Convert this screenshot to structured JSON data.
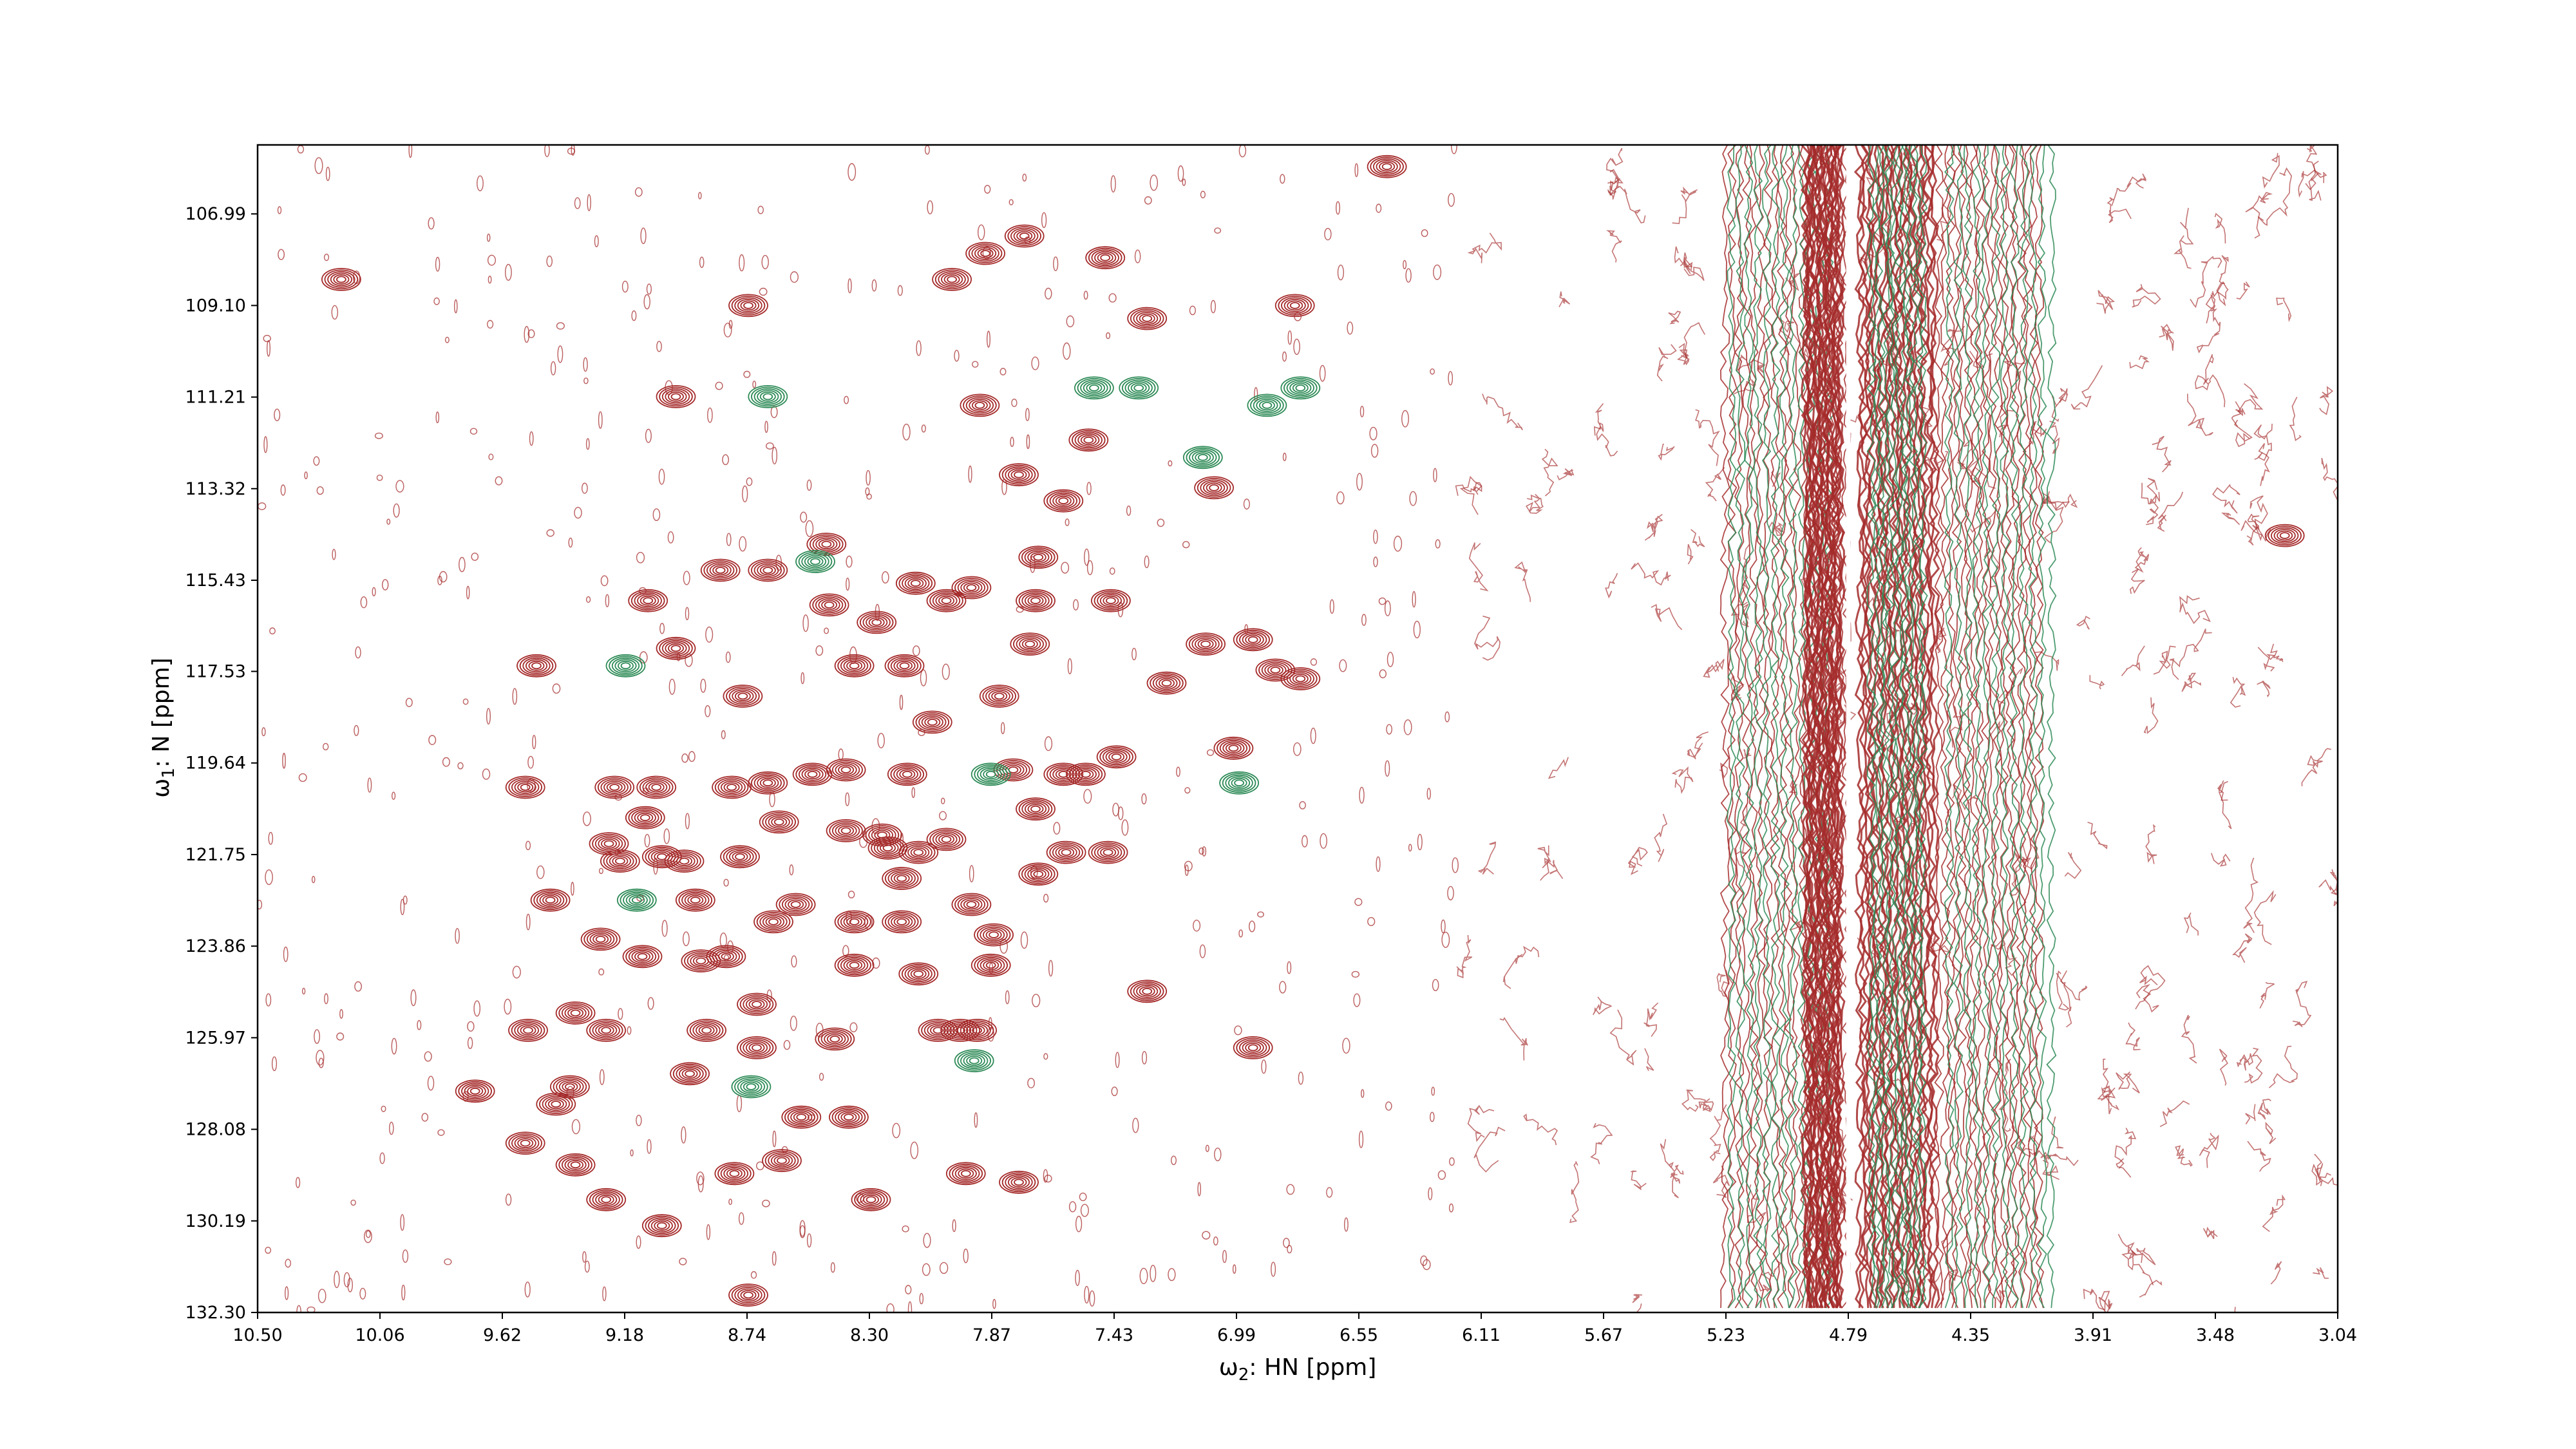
{
  "chart_data": {
    "type": "contour",
    "xlabel": {
      "prefix": "ω",
      "sub": "2",
      "suffix": ": HN [ppm]"
    },
    "ylabel": {
      "prefix": "ω",
      "sub": "1",
      "suffix": ": N [ppm]"
    },
    "xlim": [
      10.5,
      3.04
    ],
    "ylim": [
      132.3,
      105.4
    ],
    "x_ticks": [
      "10.50",
      "10.06",
      "9.62",
      "9.18",
      "8.74",
      "8.30",
      "7.87",
      "7.43",
      "6.99",
      "6.55",
      "6.11",
      "5.67",
      "5.23",
      "4.79",
      "4.35",
      "3.91",
      "3.48",
      "3.04"
    ],
    "y_ticks": [
      "106.99",
      "109.10",
      "111.21",
      "113.32",
      "115.43",
      "117.53",
      "119.64",
      "121.75",
      "123.86",
      "125.97",
      "128.08",
      "130.19",
      "132.30"
    ],
    "series": [
      {
        "color": "#a52a2a",
        "sign": "positive"
      },
      {
        "color": "#2e8b57",
        "sign": "negative"
      }
    ],
    "peaks": [
      [
        6.45,
        105.9,
        "pos"
      ],
      [
        10.2,
        108.5,
        "pos"
      ],
      [
        7.75,
        107.5,
        "pos"
      ],
      [
        7.89,
        107.9,
        "pos"
      ],
      [
        7.46,
        108.0,
        "pos"
      ],
      [
        8.01,
        108.5,
        "pos"
      ],
      [
        8.74,
        109.1,
        "pos"
      ],
      [
        6.78,
        109.1,
        "pos"
      ],
      [
        7.31,
        109.4,
        "pos"
      ],
      [
        9.0,
        111.2,
        "pos"
      ],
      [
        8.67,
        111.2,
        "neg"
      ],
      [
        7.91,
        111.4,
        "pos"
      ],
      [
        7.52,
        112.2,
        "pos"
      ],
      [
        7.5,
        111.0,
        "neg"
      ],
      [
        7.34,
        111.0,
        "neg"
      ],
      [
        6.88,
        111.4,
        "neg"
      ],
      [
        6.76,
        111.0,
        "neg"
      ],
      [
        7.11,
        112.6,
        "neg"
      ],
      [
        7.07,
        113.3,
        "pos"
      ],
      [
        7.77,
        113.0,
        "pos"
      ],
      [
        7.61,
        113.6,
        "pos"
      ],
      [
        3.23,
        114.4,
        "pos"
      ],
      [
        8.46,
        114.6,
        "pos"
      ],
      [
        7.7,
        114.9,
        "pos"
      ],
      [
        8.5,
        115.0,
        "neg"
      ],
      [
        8.67,
        115.2,
        "pos"
      ],
      [
        8.84,
        115.2,
        "pos"
      ],
      [
        8.14,
        115.5,
        "pos"
      ],
      [
        7.94,
        115.6,
        "pos"
      ],
      [
        8.03,
        115.9,
        "pos"
      ],
      [
        7.71,
        115.9,
        "pos"
      ],
      [
        7.44,
        115.9,
        "pos"
      ],
      [
        9.1,
        115.9,
        "pos"
      ],
      [
        8.45,
        116.0,
        "pos"
      ],
      [
        8.28,
        116.4,
        "pos"
      ],
      [
        7.1,
        116.9,
        "pos"
      ],
      [
        6.93,
        116.8,
        "pos"
      ],
      [
        7.73,
        116.9,
        "pos"
      ],
      [
        9.0,
        117.0,
        "pos"
      ],
      [
        9.5,
        117.4,
        "pos"
      ],
      [
        9.18,
        117.4,
        "neg"
      ],
      [
        8.36,
        117.4,
        "pos"
      ],
      [
        8.18,
        117.4,
        "pos"
      ],
      [
        6.85,
        117.5,
        "pos"
      ],
      [
        6.76,
        117.7,
        "pos"
      ],
      [
        7.24,
        117.8,
        "pos"
      ],
      [
        8.76,
        118.1,
        "pos"
      ],
      [
        7.84,
        118.1,
        "pos"
      ],
      [
        8.08,
        118.7,
        "pos"
      ],
      [
        7.0,
        119.3,
        "pos"
      ],
      [
        7.42,
        119.5,
        "pos"
      ],
      [
        7.79,
        119.8,
        "pos"
      ],
      [
        7.87,
        119.9,
        "neg"
      ],
      [
        7.61,
        119.9,
        "pos"
      ],
      [
        7.53,
        119.9,
        "pos"
      ],
      [
        8.39,
        119.8,
        "pos"
      ],
      [
        8.17,
        119.9,
        "pos"
      ],
      [
        8.51,
        119.9,
        "pos"
      ],
      [
        8.67,
        120.1,
        "pos"
      ],
      [
        8.8,
        120.2,
        "pos"
      ],
      [
        9.07,
        120.2,
        "pos"
      ],
      [
        9.22,
        120.2,
        "pos"
      ],
      [
        9.54,
        120.2,
        "pos"
      ],
      [
        6.98,
        120.1,
        "neg"
      ],
      [
        7.71,
        120.7,
        "pos"
      ],
      [
        8.63,
        121.0,
        "pos"
      ],
      [
        9.11,
        120.9,
        "pos"
      ],
      [
        8.39,
        121.2,
        "pos"
      ],
      [
        8.26,
        121.3,
        "pos"
      ],
      [
        8.03,
        121.4,
        "pos"
      ],
      [
        9.24,
        121.5,
        "pos"
      ],
      [
        9.2,
        121.9,
        "pos"
      ],
      [
        9.05,
        121.8,
        "pos"
      ],
      [
        8.97,
        121.9,
        "pos"
      ],
      [
        8.77,
        121.8,
        "pos"
      ],
      [
        8.24,
        121.6,
        "pos"
      ],
      [
        8.13,
        121.7,
        "pos"
      ],
      [
        7.6,
        121.7,
        "pos"
      ],
      [
        7.45,
        121.7,
        "pos"
      ],
      [
        7.7,
        122.2,
        "pos"
      ],
      [
        8.19,
        122.3,
        "pos"
      ],
      [
        9.45,
        122.8,
        "pos"
      ],
      [
        9.14,
        122.8,
        "neg"
      ],
      [
        8.93,
        122.8,
        "pos"
      ],
      [
        8.57,
        122.9,
        "pos"
      ],
      [
        7.94,
        122.9,
        "pos"
      ],
      [
        8.19,
        123.3,
        "pos"
      ],
      [
        8.36,
        123.3,
        "pos"
      ],
      [
        8.65,
        123.3,
        "pos"
      ],
      [
        9.27,
        123.7,
        "pos"
      ],
      [
        7.86,
        123.6,
        "pos"
      ],
      [
        8.91,
        124.2,
        "pos"
      ],
      [
        9.12,
        124.1,
        "pos"
      ],
      [
        8.82,
        124.1,
        "pos"
      ],
      [
        8.36,
        124.3,
        "pos"
      ],
      [
        8.13,
        124.5,
        "pos"
      ],
      [
        7.87,
        124.3,
        "pos"
      ],
      [
        7.31,
        124.9,
        "pos"
      ],
      [
        8.71,
        125.2,
        "pos"
      ],
      [
        9.36,
        125.4,
        "pos"
      ],
      [
        9.53,
        125.8,
        "pos"
      ],
      [
        9.25,
        125.8,
        "pos"
      ],
      [
        8.89,
        125.8,
        "pos"
      ],
      [
        8.43,
        126.0,
        "pos"
      ],
      [
        8.06,
        125.8,
        "pos"
      ],
      [
        7.98,
        125.8,
        "pos"
      ],
      [
        7.92,
        125.8,
        "pos"
      ],
      [
        8.71,
        126.2,
        "pos"
      ],
      [
        6.93,
        126.2,
        "pos"
      ],
      [
        7.93,
        126.5,
        "neg"
      ],
      [
        8.95,
        126.8,
        "pos"
      ],
      [
        8.73,
        127.1,
        "neg"
      ],
      [
        9.72,
        127.2,
        "pos"
      ],
      [
        9.43,
        127.5,
        "pos"
      ],
      [
        9.38,
        127.1,
        "pos"
      ],
      [
        8.55,
        127.8,
        "pos"
      ],
      [
        8.38,
        127.8,
        "pos"
      ],
      [
        9.54,
        128.4,
        "pos"
      ],
      [
        9.36,
        128.9,
        "pos"
      ],
      [
        8.62,
        128.8,
        "pos"
      ],
      [
        8.79,
        129.1,
        "pos"
      ],
      [
        7.96,
        129.1,
        "pos"
      ],
      [
        7.77,
        129.3,
        "pos"
      ],
      [
        9.25,
        129.7,
        "pos"
      ],
      [
        8.3,
        129.7,
        "pos"
      ],
      [
        9.05,
        130.3,
        "pos"
      ],
      [
        8.74,
        131.9,
        "pos"
      ]
    ],
    "noise_region": [
      6.2,
      3.04
    ],
    "bands": [
      [
        5.25,
        4.79,
        3,
        "pos"
      ],
      [
        5.23,
        4.85,
        2,
        "neg"
      ],
      [
        4.95,
        4.82,
        4,
        "pos"
      ],
      [
        4.76,
        4.48,
        4,
        "pos"
      ],
      [
        4.72,
        4.52,
        2,
        "neg"
      ],
      [
        4.48,
        4.1,
        3,
        "pos"
      ],
      [
        4.45,
        4.05,
        2,
        "neg"
      ]
    ]
  }
}
